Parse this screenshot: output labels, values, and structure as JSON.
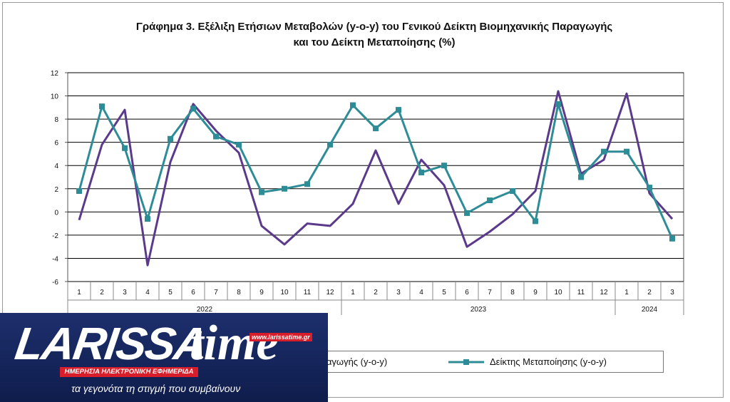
{
  "chart_data": {
    "type": "line",
    "title_line1": "Γράφημα 3. Εξέλιξη Ετήσιων Μεταβολών (y-o-y) του Γενικού Δείκτη Βιομηχανικής Παραγωγής",
    "title_line2": "και του Δείκτη Μεταποίησης (%)",
    "ylim": [
      -6,
      12
    ],
    "yticks": [
      -6,
      -4,
      -2,
      0,
      2,
      4,
      6,
      8,
      10,
      12
    ],
    "categories": [
      "1",
      "2",
      "3",
      "4",
      "5",
      "6",
      "7",
      "8",
      "9",
      "10",
      "11",
      "12",
      "1",
      "2",
      "3",
      "4",
      "5",
      "6",
      "7",
      "8",
      "9",
      "10",
      "11",
      "12",
      "1",
      "2",
      "3"
    ],
    "year_groups": [
      {
        "label": "2022",
        "count": 12
      },
      {
        "label": "2023",
        "count": 12
      },
      {
        "label": "2024",
        "count": 3
      }
    ],
    "grid": true,
    "series": [
      {
        "name": "Γενικός Δείκτης Βιομηχανικής Παραγωγής (y-o-y)",
        "color": "#5b3a8c",
        "marker": "none",
        "values": [
          -0.7,
          5.8,
          8.8,
          -4.6,
          4.3,
          9.3,
          7.0,
          5.1,
          -1.2,
          -2.8,
          -1.0,
          -1.2,
          0.7,
          5.3,
          0.7,
          4.5,
          2.3,
          -3.0,
          -1.7,
          -0.2,
          1.8,
          10.4,
          3.3,
          4.5,
          10.2,
          1.6,
          -0.6
        ]
      },
      {
        "name": "Δείκτης Μεταποίησης (y-o-y)",
        "color": "#2e8c97",
        "marker": "square",
        "values": [
          1.8,
          9.1,
          5.5,
          -0.6,
          6.3,
          8.9,
          6.5,
          5.8,
          1.7,
          2.0,
          2.4,
          5.8,
          9.2,
          7.2,
          8.8,
          3.4,
          4.0,
          -0.1,
          1.0,
          1.8,
          -0.8,
          9.3,
          3.0,
          5.2,
          5.2,
          2.1,
          -2.3
        ]
      }
    ],
    "legend_visible": {
      "series1_text": "αραγωγής (y-o-y)",
      "series2_text": "Δείκτης Μεταποίησης (y-o-y)"
    }
  },
  "logo": {
    "word1": "LARISSA",
    "word2": "time",
    "url": "www.larissatime.gr",
    "tagline": "ΗΜΕΡΗΣΙΑ ΗΛΕΚΤΡΟΝΙΚΗ ΕΦΗΜΕΡΙΔΑ",
    "slogan": "τα γεγονότα τη στιγμή που συμβαίνουν",
    "bg_color": "#1d2f6d",
    "accent_color": "#d81e2a"
  }
}
